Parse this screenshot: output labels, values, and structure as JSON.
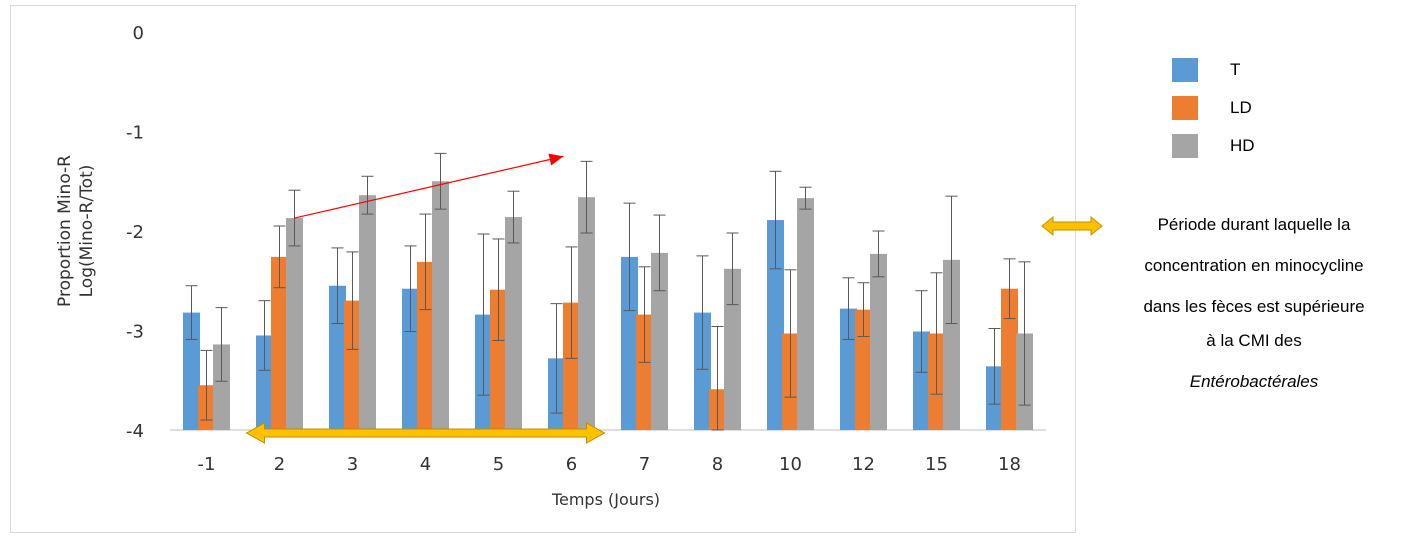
{
  "chart_data": {
    "type": "bar",
    "title": "",
    "xlabel": "Temps (Jours)",
    "ylabel_line1": "Proportion Mino-R",
    "ylabel_line2": "Log(Mino-R/Tot)",
    "ylim": [
      -4,
      0
    ],
    "yticks": [
      0,
      -1,
      -2,
      -3,
      -4
    ],
    "categories": [
      "-1",
      "2",
      "3",
      "4",
      "5",
      "6",
      "7",
      "8",
      "10",
      "12",
      "15",
      "18"
    ],
    "series": [
      {
        "name": "T",
        "color": "#5b9bd5",
        "values": [
          -2.82,
          -3.05,
          -2.55,
          -2.58,
          -2.84,
          -3.28,
          -2.26,
          -2.82,
          -1.89,
          -2.78,
          -3.01,
          -3.36
        ],
        "error": [
          0.27,
          0.35,
          0.38,
          0.43,
          0.81,
          0.55,
          0.54,
          0.57,
          0.49,
          0.31,
          0.41,
          0.38
        ]
      },
      {
        "name": "LD",
        "color": "#ed7d31",
        "values": [
          -3.55,
          -2.26,
          -2.7,
          -2.31,
          -2.59,
          -2.72,
          -2.84,
          -3.59,
          -3.03,
          -2.79,
          -3.03,
          -2.58
        ],
        "error": [
          0.35,
          0.31,
          0.49,
          0.48,
          0.51,
          0.56,
          0.48,
          0.63,
          0.64,
          0.27,
          0.61,
          0.3
        ]
      },
      {
        "name": "HD",
        "color": "#a5a5a5",
        "values": [
          -3.14,
          -1.87,
          -1.64,
          -1.5,
          -1.86,
          -1.66,
          -2.22,
          -2.38,
          -1.67,
          -2.23,
          -2.29,
          -3.03
        ],
        "error": [
          0.37,
          0.28,
          0.19,
          0.28,
          0.26,
          0.36,
          0.38,
          0.36,
          0.11,
          0.23,
          0.64,
          0.72
        ]
      }
    ],
    "annotations": {
      "trend_arrow": {
        "color": "#ff0000",
        "from": {
          "x": "2",
          "y": -1.87
        },
        "to": {
          "x": "6",
          "y": -1.25
        }
      },
      "period_arrow": {
        "color": "#ffc000",
        "from": "2",
        "to": "6"
      }
    },
    "legend_position": "top-right"
  },
  "legend": {
    "items": [
      {
        "label": "T",
        "color": "#5b9bd5"
      },
      {
        "label": "LD",
        "color": "#ed7d31"
      },
      {
        "label": "HD",
        "color": "#a5a5a5"
      }
    ]
  },
  "note": {
    "lines": [
      "Période durant laquelle la",
      "concentration en minocycline",
      "dans les fèces est supérieure",
      "à la CMI des"
    ],
    "italic_line": "Entérobactérales",
    "arrow_color": "#ffc000"
  }
}
